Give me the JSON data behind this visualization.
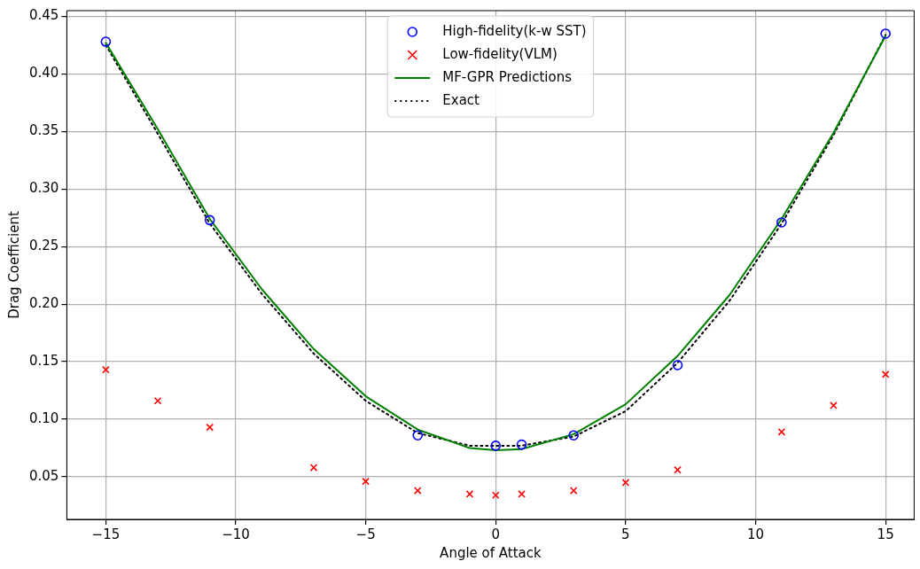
{
  "chart_data": {
    "type": "line",
    "xlabel": "Angle of Attack",
    "ylabel": "Drag Coefficient",
    "xlim": [
      -16.5,
      16.1
    ],
    "xticks": [
      {
        "value": -15,
        "label": "−15"
      },
      {
        "value": -10,
        "label": "−10"
      },
      {
        "value": -5,
        "label": "−5"
      },
      0,
      5,
      10,
      15
    ],
    "ylim": [
      0.013,
      0.455
    ],
    "yticks": [
      {
        "value": 0.05,
        "label": "0.05"
      },
      {
        "value": 0.1,
        "label": "0.10"
      },
      {
        "value": 0.15,
        "label": "0.15"
      },
      {
        "value": 0.2,
        "label": "0.20"
      },
      {
        "value": 0.25,
        "label": "0.25"
      },
      {
        "value": 0.3,
        "label": "0.30"
      },
      {
        "value": 0.35,
        "label": "0.35"
      },
      {
        "value": 0.4,
        "label": "0.40"
      },
      {
        "value": 0.45,
        "label": "0.45"
      }
    ],
    "grid": true,
    "legend": "top",
    "series": [
      {
        "name": "High-fidelity(k-w SST)",
        "type": "scatter",
        "marker": "circle",
        "color": "#0000ff",
        "x": [
          -15,
          -11,
          -3,
          0,
          1,
          3,
          7,
          11,
          15
        ],
        "values": [
          0.428,
          0.273,
          0.086,
          0.077,
          0.078,
          0.086,
          0.147,
          0.271,
          0.435
        ]
      },
      {
        "name": "Low-fidelity(VLM)",
        "type": "scatter",
        "marker": "cross",
        "color": "#ff0000",
        "x": [
          -15,
          -13,
          -11,
          -7,
          -5,
          -3,
          -1,
          0,
          1,
          3,
          5,
          7,
          11,
          13,
          15
        ],
        "values": [
          0.143,
          0.116,
          0.093,
          0.058,
          0.046,
          0.038,
          0.035,
          0.034,
          0.035,
          0.038,
          0.045,
          0.056,
          0.089,
          0.112,
          0.139
        ]
      },
      {
        "name": "MF-GPR Predictions",
        "type": "line",
        "line_style": "solid",
        "color": "#008000",
        "x": [
          -15,
          -13,
          -11,
          -9,
          -7,
          -5,
          -3,
          -1,
          0,
          1,
          3,
          5,
          7,
          9,
          11,
          13,
          15
        ],
        "values": [
          0.427,
          0.352,
          0.274,
          0.213,
          0.161,
          0.12,
          0.091,
          0.075,
          0.073,
          0.074,
          0.087,
          0.113,
          0.155,
          0.208,
          0.274,
          0.349,
          0.433
        ]
      },
      {
        "name": "Exact",
        "type": "line",
        "line_style": "dotted",
        "color": "#000000",
        "x": [
          -15,
          -13,
          -11,
          -9,
          -7,
          -5,
          -3,
          -1,
          0,
          1,
          3,
          5,
          7,
          9,
          11,
          13,
          15
        ],
        "values": [
          0.425,
          0.348,
          0.27,
          0.209,
          0.157,
          0.116,
          0.088,
          0.077,
          0.077,
          0.077,
          0.085,
          0.107,
          0.149,
          0.203,
          0.27,
          0.347,
          0.434
        ]
      }
    ]
  }
}
